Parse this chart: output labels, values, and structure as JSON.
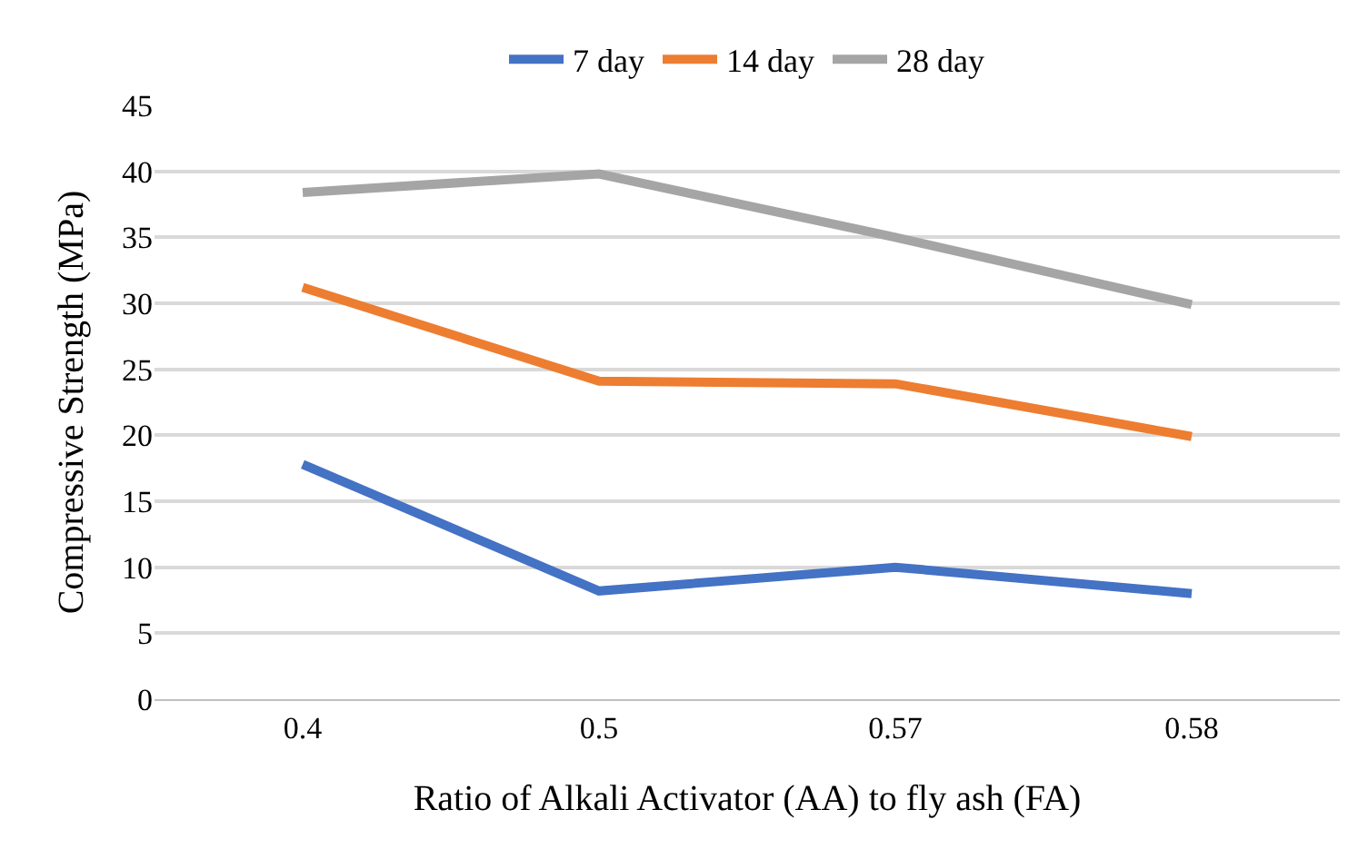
{
  "chart_data": {
    "type": "line",
    "xlabel": "Ratio of Alkali Activator (AA) to fly ash (FA)",
    "ylabel": "Compressive Strength (MPa)",
    "categories": [
      "0.4",
      "0.5",
      "0.57",
      "0.58"
    ],
    "series": [
      {
        "name": "7 day",
        "color": "#4472c4",
        "values": [
          17.8,
          8.2,
          10,
          8
        ]
      },
      {
        "name": "14 day",
        "color": "#ed7d31",
        "values": [
          31.2,
          24.1,
          23.9,
          19.9
        ]
      },
      {
        "name": "28 day",
        "color": "#a5a5a5",
        "values": [
          38.4,
          39.8,
          35,
          29.9
        ]
      }
    ],
    "ylim": [
      0,
      45
    ],
    "yticks": [
      0,
      5,
      10,
      15,
      20,
      25,
      30,
      35,
      40,
      45
    ],
    "grid": "y",
    "legend": "top",
    "marker": "none",
    "line_style": "solid"
  }
}
